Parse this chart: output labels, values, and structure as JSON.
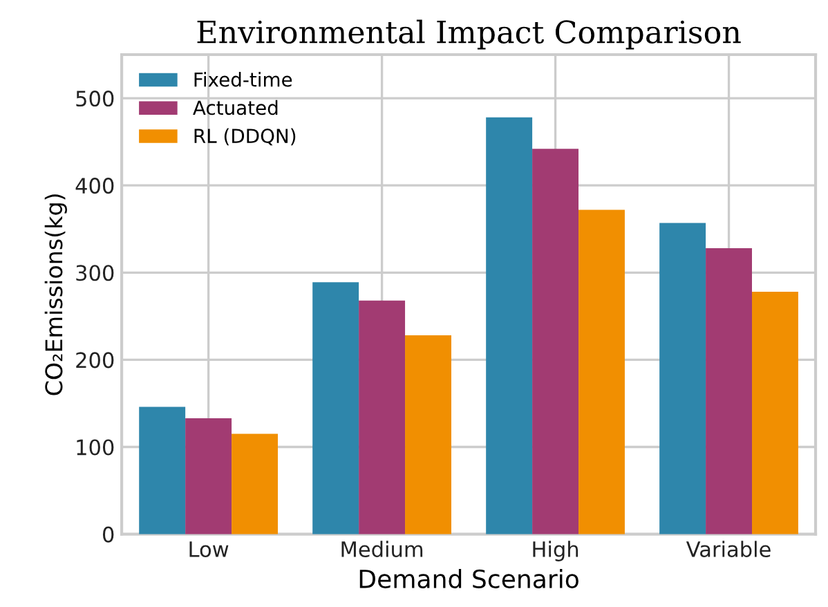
{
  "chart_data": {
    "type": "bar",
    "title": "Environmental Impact Comparison",
    "xlabel": "Demand Scenario",
    "ylabel": "CO₂Emissions(kg)",
    "categories": [
      "Low",
      "Medium",
      "High",
      "Variable"
    ],
    "series": [
      {
        "name": "Fixed-time",
        "color": "#2e86ab",
        "values": [
          146,
          289,
          478,
          357
        ]
      },
      {
        "name": "Actuated",
        "color": "#a23b72",
        "values": [
          133,
          268,
          442,
          328
        ]
      },
      {
        "name": "RL (DDQN)",
        "color": "#f18f01",
        "values": [
          115,
          228,
          372,
          278
        ]
      }
    ],
    "ylim": [
      0,
      550
    ],
    "yticks": [
      0,
      100,
      200,
      300,
      400,
      500
    ],
    "grid": true,
    "legend": "top left"
  }
}
